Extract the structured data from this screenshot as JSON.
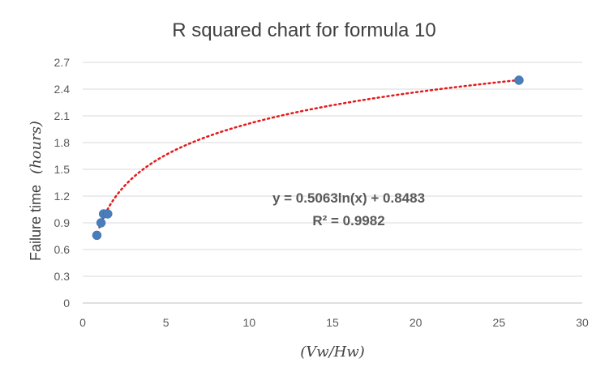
{
  "chart_data": {
    "type": "scatter",
    "title": "R squared chart for formula 10",
    "ylabel": "Failure time",
    "ylabel_unit": "(hours)",
    "xlabel": "(Vw/Hw)",
    "xlim": [
      0,
      30
    ],
    "ylim": [
      0,
      2.7
    ],
    "x_ticks": [
      "0",
      "5",
      "10",
      "15",
      "20",
      "25",
      "30"
    ],
    "y_ticks": [
      "0",
      "0.3",
      "0.6",
      "0.9",
      "1.2",
      "1.5",
      "1.8",
      "2.1",
      "2.4",
      "2.7"
    ],
    "grid": true,
    "points": [
      {
        "x": 0.85,
        "y": 0.76
      },
      {
        "x": 1.1,
        "y": 0.9
      },
      {
        "x": 1.25,
        "y": 1.0
      },
      {
        "x": 1.5,
        "y": 1.0
      },
      {
        "x": 26.2,
        "y": 2.5
      }
    ],
    "trendline": {
      "type": "logarithmic",
      "a": 0.5063,
      "b": 0.8483,
      "x_start": 1.0,
      "x_end": 26.2
    },
    "equation": "y = 0.5063ln(x) + 0.8483",
    "r_squared": "R² = 0.9982",
    "colors": {
      "points": "#4a7ebb",
      "trendline": "#e31a1c"
    }
  }
}
